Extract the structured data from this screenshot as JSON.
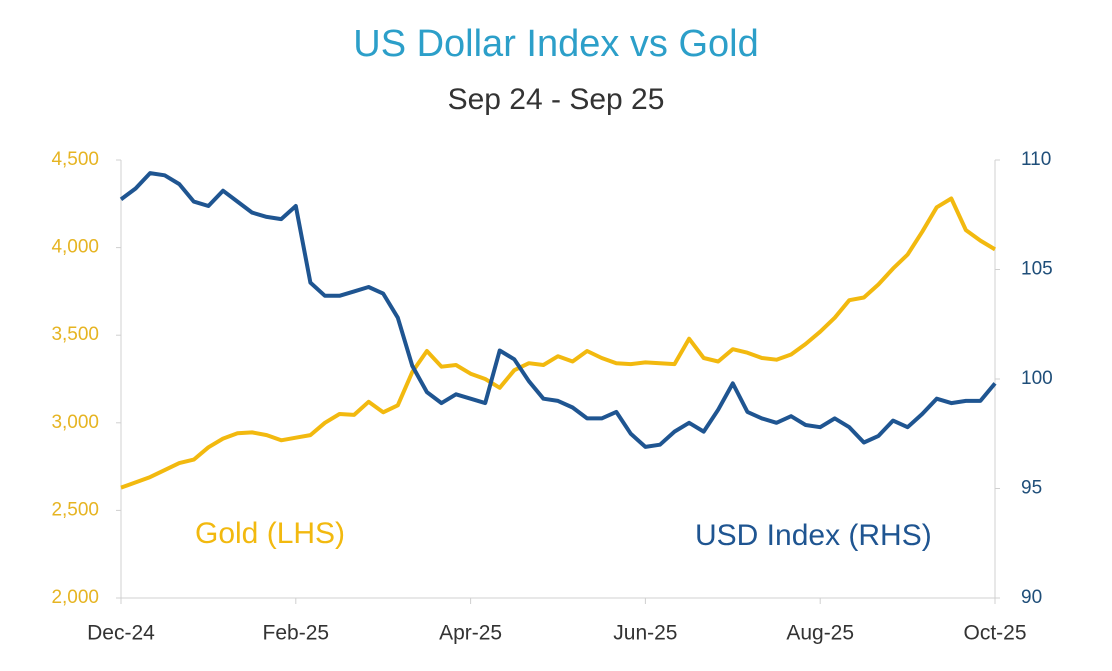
{
  "chart_data": {
    "type": "line",
    "title": "US Dollar Index vs Gold",
    "subtitle": "Sep 24 - Sep 25",
    "categories": [
      "Dec-24",
      null,
      null,
      null,
      null,
      null,
      null,
      null,
      null,
      null,
      null,
      null,
      "Feb-25",
      null,
      null,
      null,
      null,
      null,
      null,
      null,
      null,
      null,
      null,
      null,
      "Apr-25",
      null,
      null,
      null,
      null,
      null,
      null,
      null,
      null,
      null,
      null,
      null,
      "Jun-25",
      null,
      null,
      null,
      null,
      null,
      null,
      null,
      null,
      null,
      null,
      null,
      "Aug-25",
      null,
      null,
      null,
      null,
      null,
      null,
      null,
      null,
      null,
      null,
      null,
      "Oct-25"
    ],
    "series": [
      {
        "name": "Gold (LHS)",
        "color": "#f2b90f",
        "values": [
          2630,
          2660,
          2690,
          2730,
          2770,
          2790,
          2860,
          2910,
          2940,
          2945,
          2930,
          2900,
          2915,
          2930,
          3000,
          3050,
          3045,
          3120,
          3060,
          3100,
          3290,
          3410,
          3320,
          3330,
          3280,
          3250,
          3200,
          3300,
          3340,
          3330,
          3380,
          3350,
          3410,
          3370,
          3340,
          3335,
          3345,
          3340,
          3335,
          3480,
          3370,
          3350,
          3420,
          3400,
          3370,
          3360,
          3390,
          3450,
          3520,
          3600,
          3700,
          3715,
          3790,
          3880,
          3960,
          4090,
          4230,
          4280,
          4100,
          4040,
          3990
        ]
      },
      {
        "name": "USD Index (RHS)",
        "color": "#1f5591",
        "axis": "y2",
        "values": [
          108.2,
          108.7,
          109.4,
          109.3,
          108.9,
          108.1,
          107.9,
          108.6,
          108.1,
          107.6,
          107.4,
          107.3,
          107.9,
          104.4,
          103.8,
          103.8,
          104,
          104.2,
          103.9,
          102.8,
          100.6,
          99.4,
          98.9,
          99.3,
          99.1,
          98.9,
          101.3,
          100.9,
          99.9,
          99.1,
          99,
          98.7,
          98.2,
          98.2,
          98.5,
          97.5,
          96.9,
          97,
          97.6,
          98,
          97.6,
          98.6,
          99.8,
          98.5,
          98.2,
          98,
          98.3,
          97.9,
          97.8,
          98.2,
          97.8,
          97.1,
          97.4,
          98.1,
          97.8,
          98.4,
          99.1,
          98.9,
          99,
          99,
          99.8
        ]
      }
    ],
    "ylim": [
      2000,
      4500
    ],
    "yticks": [
      {
        "value": 2000,
        "label": "2,000"
      },
      {
        "value": 2500,
        "label": "2,500"
      },
      {
        "value": 3000,
        "label": "3,000"
      },
      {
        "value": 3500,
        "label": "3,500"
      },
      {
        "value": 4000,
        "label": "4,000"
      },
      {
        "value": 4500,
        "label": "4,500"
      }
    ],
    "y2lim": [
      90,
      110
    ],
    "y2ticks": [
      90,
      95,
      100,
      105,
      110
    ],
    "grid": false
  }
}
